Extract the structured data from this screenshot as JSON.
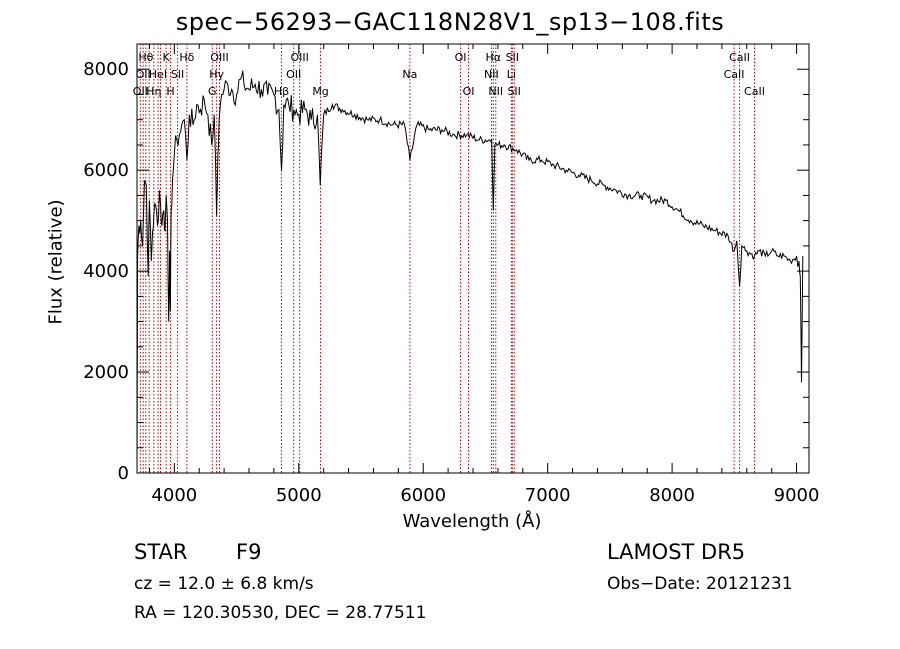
{
  "chart_data": {
    "type": "line",
    "title": "spec−56293−GAC118N28V1_sp13−108.fits",
    "xlabel": "Wavelength (Å)",
    "ylabel": "Flux (relative)",
    "xlim": [
      3700,
      9100
    ],
    "ylim": [
      0,
      8500
    ],
    "x_ticks": [
      4000,
      5000,
      6000,
      7000,
      8000,
      9000
    ],
    "y_ticks": [
      0,
      2000,
      4000,
      6000,
      8000
    ],
    "grid": false,
    "legend": "none",
    "series": [
      {
        "x": [
          3700,
          3705,
          3715,
          3730,
          3745,
          3760,
          3775,
          3790,
          3800,
          3815,
          3825,
          3835,
          3850,
          3865,
          3880,
          3890,
          3900,
          3915,
          3925,
          3935,
          3945,
          3955,
          3962,
          3968,
          3975,
          3985,
          4000,
          4020,
          4040,
          4060,
          4080,
          4101,
          4120,
          4150,
          4180,
          4210,
          4240,
          4270,
          4300,
          4320,
          4340,
          4350,
          4360,
          4380,
          4400,
          4430,
          4460,
          4500,
          4530,
          4560,
          4600,
          4650,
          4700,
          4750,
          4800,
          4840,
          4861,
          4880,
          4920,
          4960,
          5000,
          5050,
          5100,
          5150,
          5172,
          5200,
          5270,
          5350,
          5450,
          5550,
          5650,
          5750,
          5850,
          5893,
          5950,
          6050,
          6150,
          6250,
          6350,
          6450,
          6550,
          6563,
          6575,
          6650,
          6750,
          6850,
          6950,
          7050,
          7150,
          7250,
          7350,
          7450,
          7550,
          7650,
          7750,
          7850,
          7950,
          8050,
          8150,
          8250,
          8350,
          8450,
          8498,
          8520,
          8542,
          8560,
          8600,
          8662,
          8700,
          8750,
          8800,
          8850,
          8900,
          8950,
          9000,
          9010,
          9020,
          9030,
          9040,
          9050
        ],
        "y": [
          0,
          4300,
          4900,
          5000,
          4500,
          5800,
          5700,
          3900,
          5400,
          4200,
          4800,
          5100,
          5300,
          4900,
          5600,
          5300,
          4900,
          5200,
          4800,
          5500,
          5000,
          3000,
          4400,
          3200,
          5200,
          5800,
          6300,
          6600,
          6700,
          6900,
          7000,
          6200,
          7100,
          6900,
          7300,
          7200,
          7400,
          7100,
          6500,
          7100,
          5100,
          6300,
          7000,
          7500,
          7600,
          7700,
          7600,
          7500,
          7800,
          7700,
          7600,
          7700,
          7600,
          7500,
          7500,
          7200,
          6000,
          7300,
          7300,
          7200,
          7100,
          7200,
          7000,
          7100,
          5700,
          7100,
          7300,
          7200,
          7100,
          7000,
          7000,
          6900,
          6900,
          6200,
          6900,
          6800,
          6800,
          6700,
          6700,
          6600,
          6600,
          5200,
          6500,
          6500,
          6400,
          6200,
          6200,
          6100,
          6000,
          5900,
          5800,
          5700,
          5600,
          5500,
          5500,
          5400,
          5400,
          5200,
          5000,
          4900,
          4800,
          4700,
          4400,
          4600,
          3700,
          4500,
          4400,
          4300,
          4400,
          4300,
          4400,
          4300,
          4300,
          4200,
          4300,
          4100,
          4200,
          3900,
          1800,
          4300
        ]
      }
    ],
    "lines": [
      {
        "x": 3727,
        "labels": [
          "OII"
        ],
        "row": 2
      },
      {
        "x": 3750,
        "labels": [
          "OII"
        ],
        "row": 1
      },
      {
        "x": 3771,
        "labels": [
          "Hθ"
        ],
        "row": 0
      },
      {
        "x": 3798,
        "labels": [],
        "row": 0
      },
      {
        "x": 3835,
        "labels": [
          "Hη"
        ],
        "row": 2
      },
      {
        "x": 3869,
        "labels": [
          "HeI"
        ],
        "row": 1
      },
      {
        "x": 3889,
        "labels": [],
        "row": 0
      },
      {
        "x": 3934,
        "labels": [
          "K"
        ],
        "row": 0
      },
      {
        "x": 3969,
        "labels": [
          "H"
        ],
        "row": 2
      },
      {
        "x": 4026,
        "labels": [
          "SII"
        ],
        "row": 1
      },
      {
        "x": 4101,
        "labels": [
          "Hδ"
        ],
        "row": 0
      },
      {
        "x": 4305,
        "labels": [
          "G"
        ],
        "row": 2
      },
      {
        "x": 4340,
        "labels": [
          "Hγ"
        ],
        "row": 1
      },
      {
        "x": 4363,
        "labels": [
          "OIII"
        ],
        "row": 0
      },
      {
        "x": 4861,
        "labels": [
          "Hβ"
        ],
        "row": 2
      },
      {
        "x": 4959,
        "labels": [
          "OII"
        ],
        "row": 1
      },
      {
        "x": 5007,
        "labels": [
          "OIII"
        ],
        "row": 0
      },
      {
        "x": 5175,
        "labels": [
          "Mg"
        ],
        "row": 2
      },
      {
        "x": 5893,
        "labels": [
          "Na"
        ],
        "row": 1
      },
      {
        "x": 6300,
        "labels": [
          "OI"
        ],
        "row": 0
      },
      {
        "x": 6364,
        "labels": [
          "OI"
        ],
        "row": 2
      },
      {
        "x": 6548,
        "labels": [
          "NII"
        ],
        "row": 1
      },
      {
        "x": 6563,
        "labels": [
          "Hα"
        ],
        "row": 0
      },
      {
        "x": 6583,
        "labels": [
          "NII"
        ],
        "row": 2
      },
      {
        "x": 6708,
        "labels": [
          "Li"
        ],
        "row": 1
      },
      {
        "x": 6716,
        "labels": [
          "SII"
        ],
        "row": 0
      },
      {
        "x": 6731,
        "labels": [
          "SII"
        ],
        "row": 2
      },
      {
        "x": 8498,
        "labels": [
          "CaII"
        ],
        "row": 1
      },
      {
        "x": 8542,
        "labels": [
          "CaII"
        ],
        "row": 0
      },
      {
        "x": 8662,
        "labels": [
          "CaII"
        ],
        "row": 2
      }
    ],
    "colors": {
      "axis": "#000000",
      "spectrum": "#000000",
      "lines": "#c00000"
    }
  },
  "footer": {
    "class_label": "STAR",
    "subclass": "F9",
    "cz": "cz = 12.0 ± 6.8 km/s",
    "coords": "RA = 120.30530, DEC =  28.77511",
    "survey": "LAMOST  DR5",
    "obs_date": "Obs−Date: 20121231"
  }
}
